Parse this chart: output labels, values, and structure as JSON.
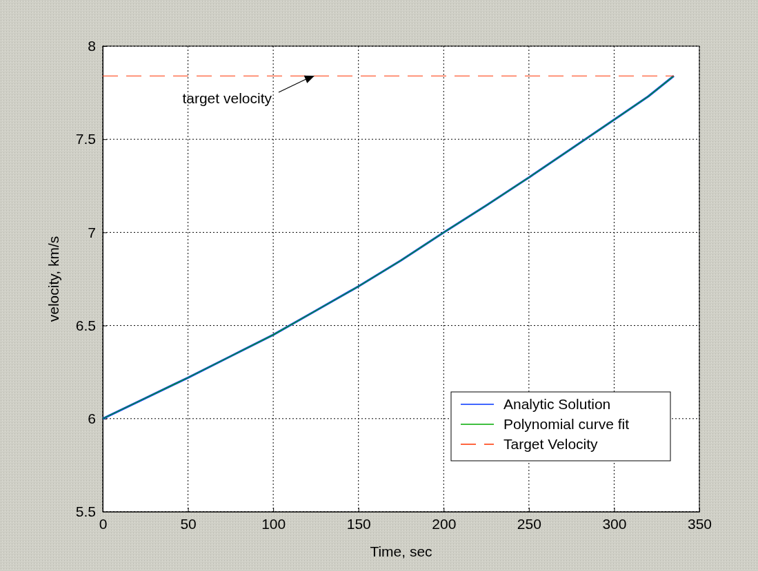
{
  "chart_data": {
    "type": "line",
    "xlabel": "Time, sec",
    "ylabel": "velocity, km/s",
    "x": [
      0,
      25,
      50,
      75,
      100,
      125,
      150,
      175,
      200,
      225,
      250,
      275,
      300,
      320,
      335
    ],
    "series": [
      {
        "name": "Analytic Solution",
        "color": "#0033ff",
        "values": [
          6.0,
          6.11,
          6.22,
          6.335,
          6.45,
          6.58,
          6.71,
          6.85,
          7.0,
          7.145,
          7.295,
          7.45,
          7.605,
          7.73,
          7.84
        ]
      },
      {
        "name": "Polynomial curve fit",
        "color": "#00aa00",
        "values": [
          6.0,
          6.11,
          6.22,
          6.335,
          6.45,
          6.58,
          6.71,
          6.85,
          7.0,
          7.145,
          7.295,
          7.45,
          7.605,
          7.73,
          7.84
        ]
      },
      {
        "name": "Target Velocity",
        "color": "#ff3300",
        "x": [
          0,
          335
        ],
        "values": [
          7.84,
          7.84
        ],
        "line_style": "dashed"
      }
    ],
    "annotations": [
      "target velocity"
    ],
    "xlim": [
      0,
      350
    ],
    "xticks": [
      0,
      50,
      100,
      150,
      200,
      250,
      300,
      350
    ],
    "ylim": [
      5.5,
      8
    ],
    "yticks": [
      5.5,
      6,
      6.5,
      7,
      7.5,
      8
    ],
    "grid": true,
    "legend": "bottom right",
    "marker": "none",
    "line_style": "solid"
  }
}
